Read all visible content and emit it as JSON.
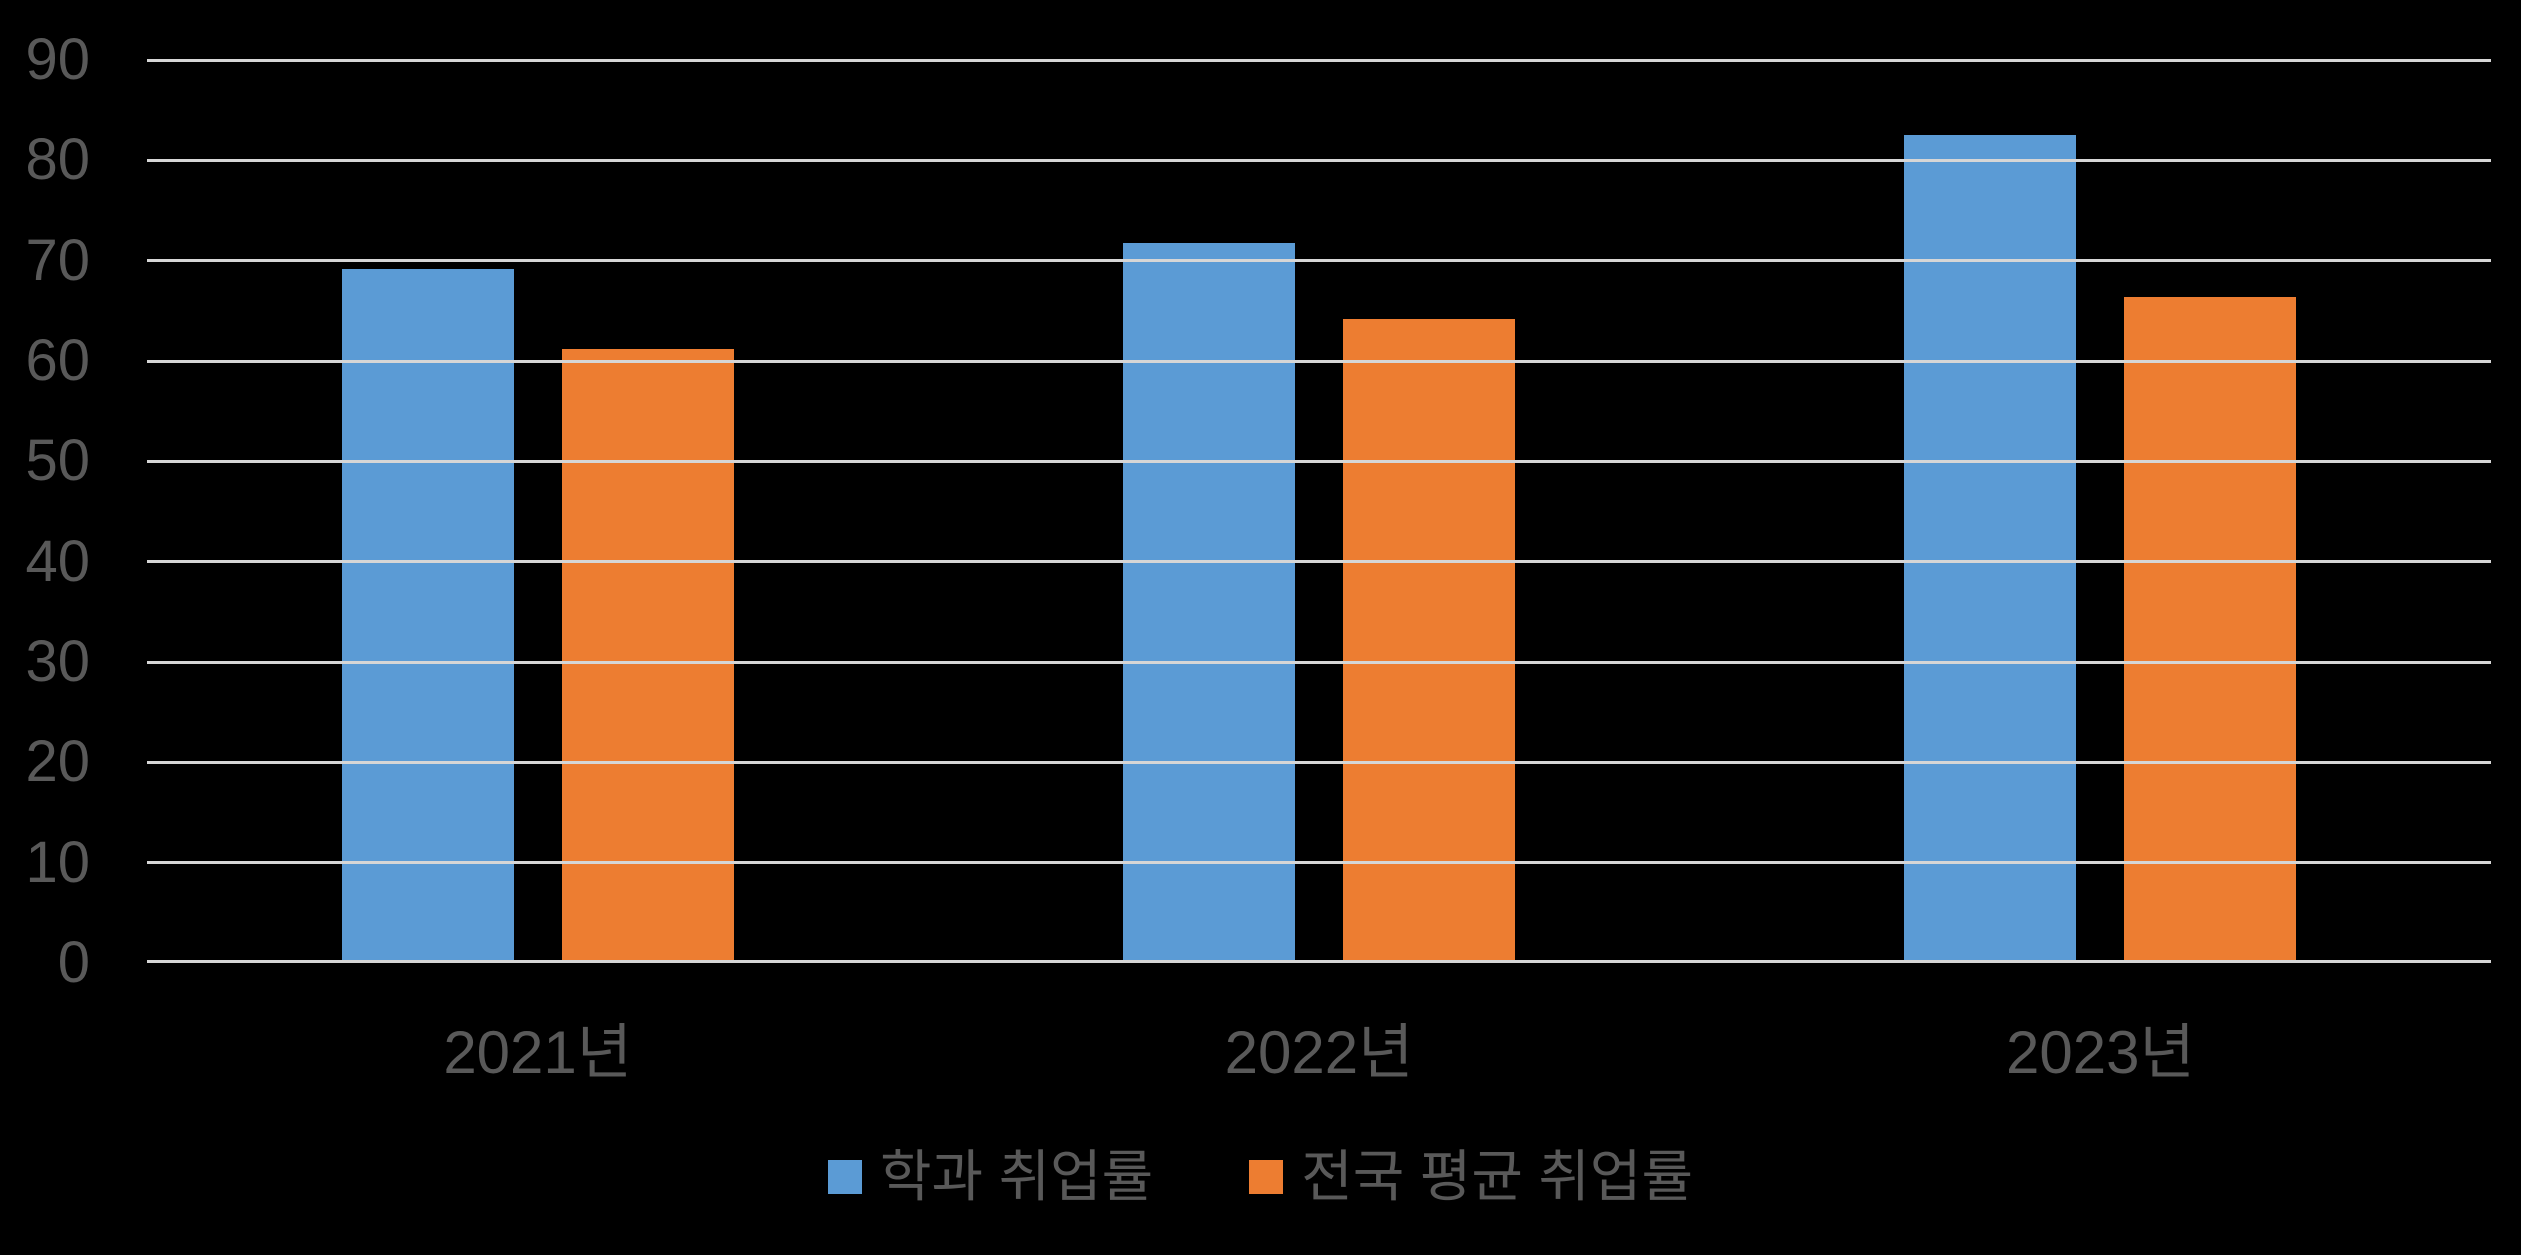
{
  "style": {
    "background": "#000000",
    "gridline_color": "#D6D6D6",
    "label_color": "#595959",
    "series1_color": "#5B9BD5",
    "series2_color": "#ED7D31"
  },
  "chart_data": {
    "type": "bar",
    "categories": [
      "2021년",
      "2022년",
      "2023년"
    ],
    "series": [
      {
        "name": "학과 취업률",
        "color": "#5B9BD5",
        "values": [
          69.2,
          71.8,
          82.5
        ]
      },
      {
        "name": "전국 평균 취업률",
        "color": "#ED7D31",
        "values": [
          61.2,
          64.2,
          66.4
        ]
      }
    ],
    "ylim": [
      0,
      90
    ],
    "yticks": [
      0,
      10,
      20,
      30,
      40,
      50,
      60,
      70,
      80,
      90
    ],
    "grid": true,
    "legend_position": "bottom"
  }
}
